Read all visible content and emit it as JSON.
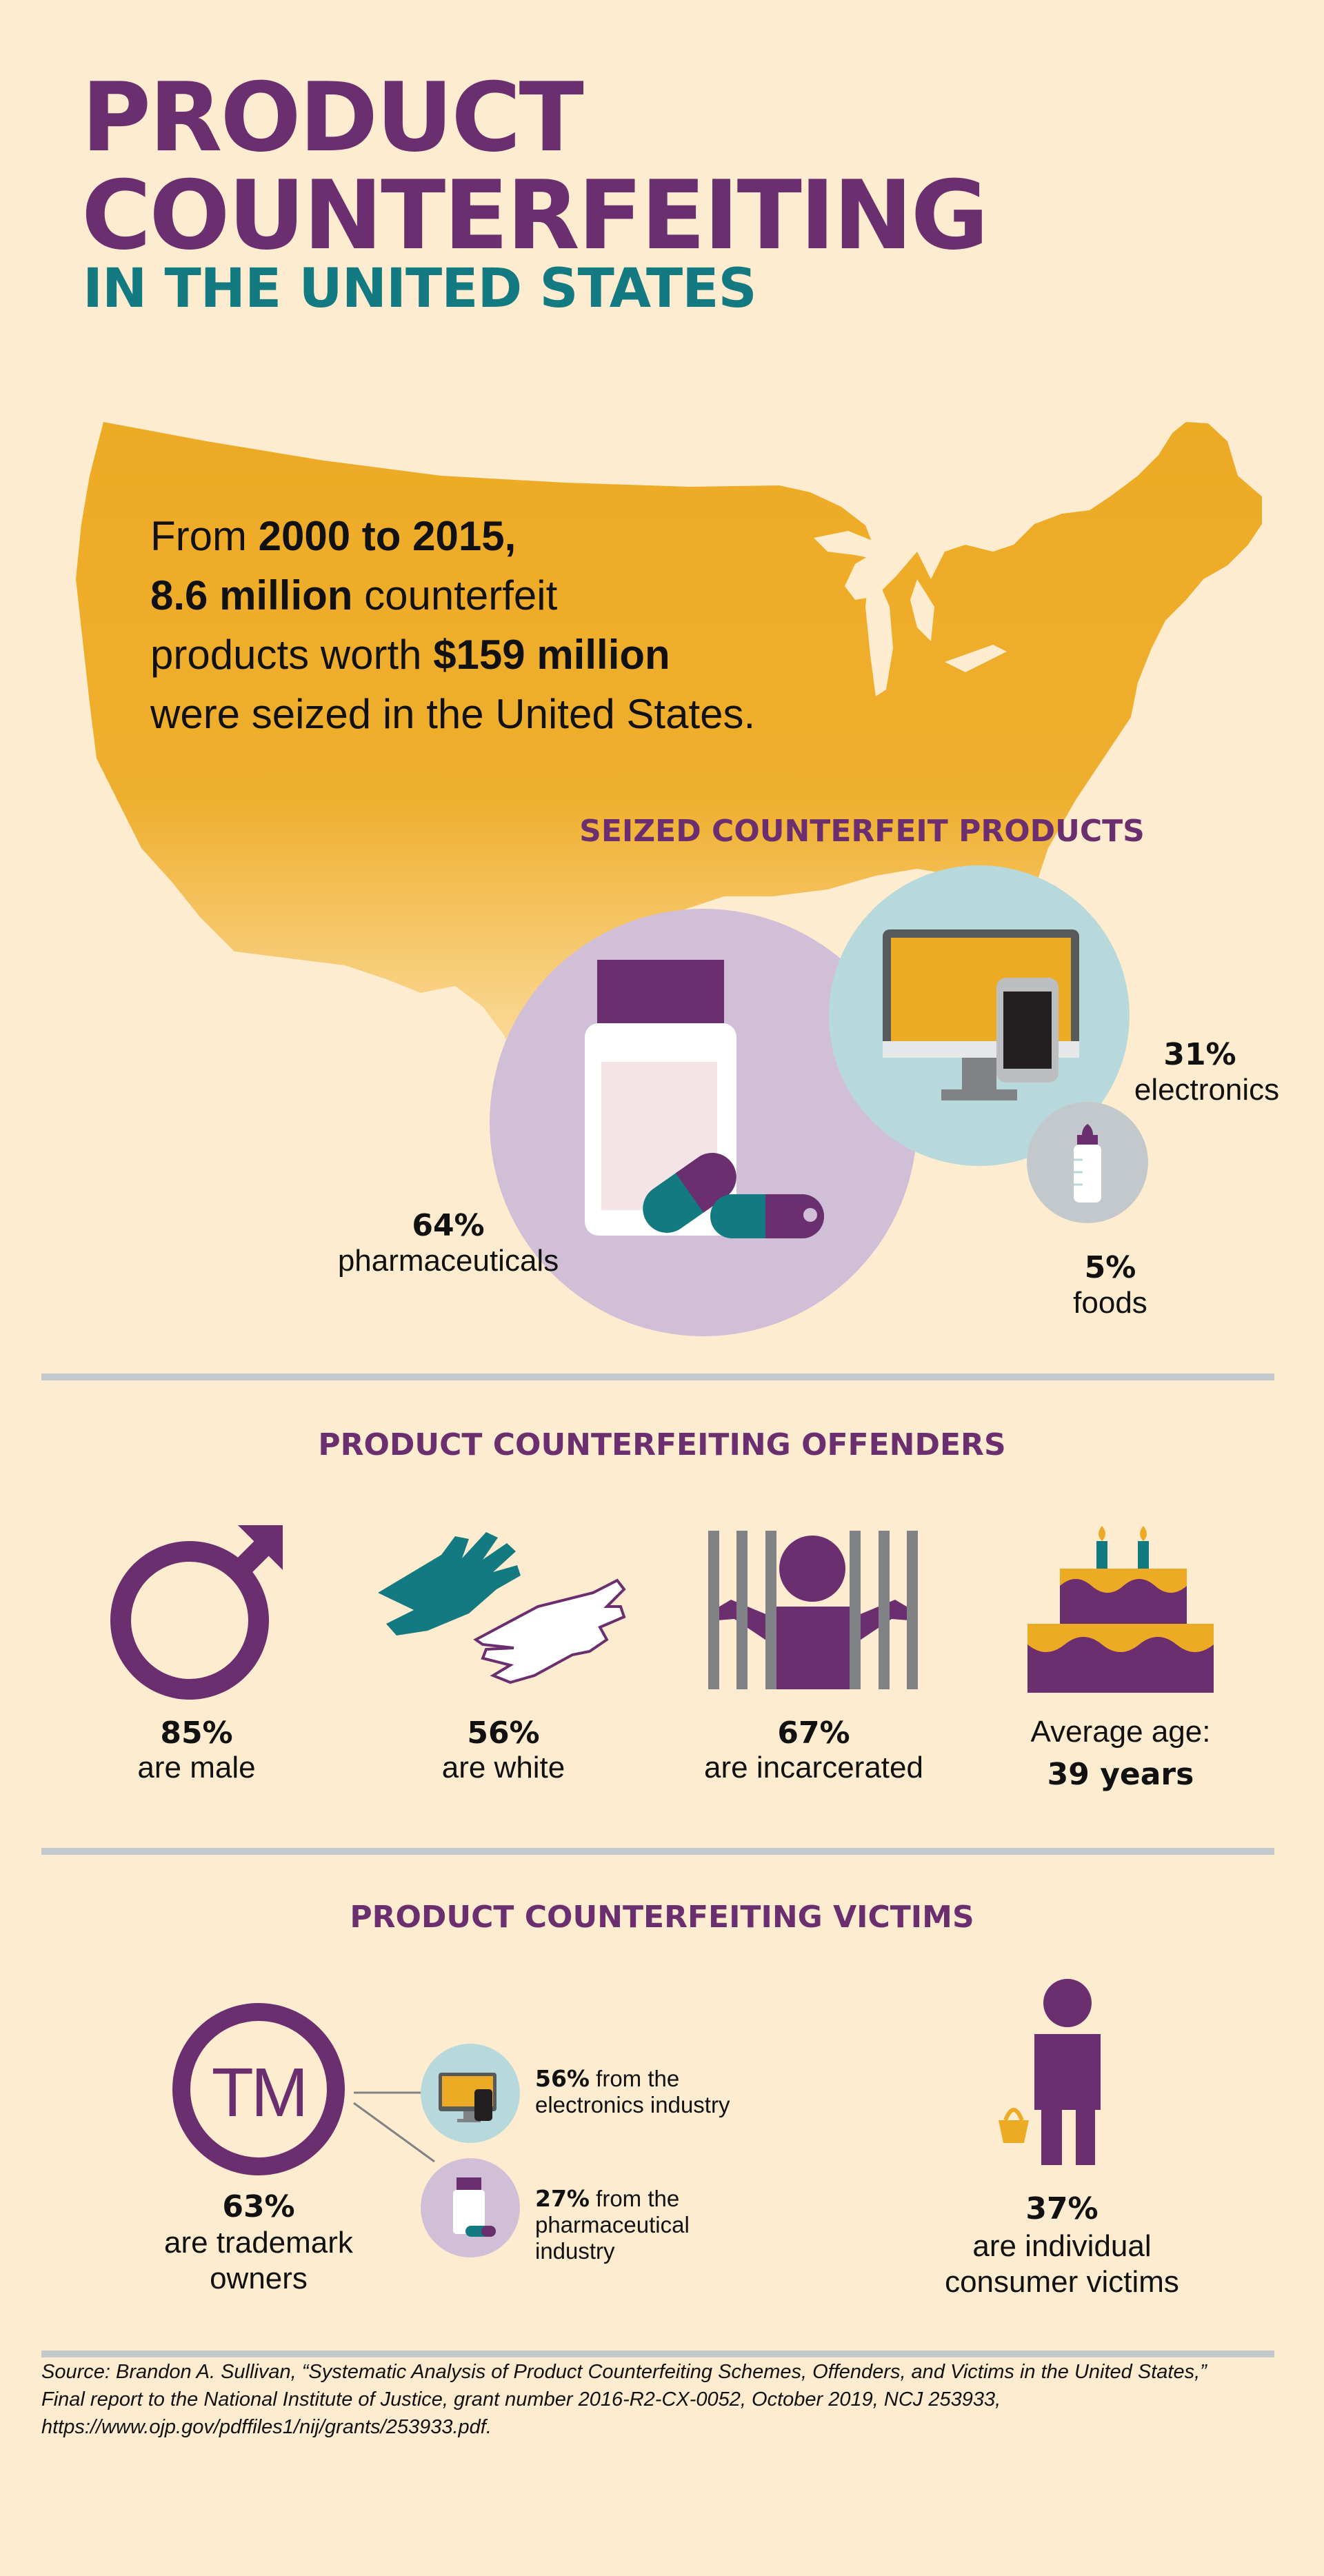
{
  "header": {
    "title_line1": "PRODUCT",
    "title_line2": "COUNTERFEITING",
    "subtitle": "IN THE UNITED STATES"
  },
  "intro": {
    "line1_prefix": "From ",
    "line1_bold": "2000 to 2015,",
    "line2_bold": "8.6 million",
    "line2_rest": " counterfeit",
    "line3_prefix": "products worth ",
    "line3_bold": "$159 million",
    "line4": "were seized in the United States."
  },
  "seized": {
    "heading": "SEIZED COUNTERFEIT PRODUCTS",
    "pharma_pct": "64%",
    "pharma_label": "pharmaceuticals",
    "electronics_pct": "31%",
    "electronics_label": "electronics",
    "foods_pct": "5%",
    "foods_label": "foods"
  },
  "offenders": {
    "heading": "PRODUCT COUNTERFEITING OFFENDERS",
    "male_pct": "85%",
    "male_label": "are male",
    "white_pct": "56%",
    "white_label": "are white",
    "incarcerated_pct": "67%",
    "incarcerated_label": "are incarcerated",
    "age_label": "Average age:",
    "age_value": "39 years"
  },
  "victims": {
    "heading": "PRODUCT COUNTERFEITING VICTIMS",
    "tm_text": "TM",
    "trademark_pct": "63%",
    "trademark_label_1": "are trademark",
    "trademark_label_2": "owners",
    "electronics_pct": "56%",
    "electronics_text_1": " from the",
    "electronics_text_2": "electronics industry",
    "pharma_pct": "27%",
    "pharma_text_1": " from the",
    "pharma_text_2": "pharmaceutical",
    "pharma_text_3": "industry",
    "consumer_pct": "37%",
    "consumer_label_1": "are individual",
    "consumer_label_2": "consumer victims"
  },
  "source": {
    "line1": "Source: Brandon A. Sullivan, “Systematic Analysis of Product Counterfeiting Schemes, Offenders, and Victims in the United States,”",
    "line2": "Final report to the National Institute of Justice, grant number 2016-R2-CX-0052, October 2019, NCJ 253933,",
    "line3": "https://www.ojp.gov/pdffiles1/nij/grants/253933.pdf."
  },
  "colors": {
    "background": "#fdecd0",
    "purple": "#6b2e6e",
    "teal": "#127a80",
    "gold": "#edaa25",
    "lilac": "#d1bfd8",
    "light_blue": "#b8d9db",
    "gray": "#c3c8cd"
  }
}
